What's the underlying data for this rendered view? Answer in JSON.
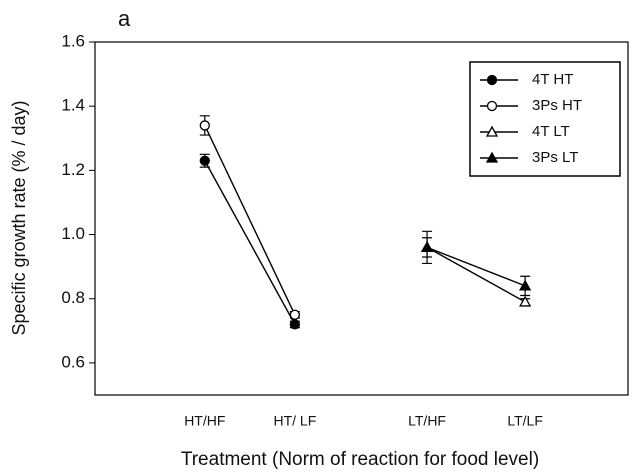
{
  "chart_data": {
    "type": "line",
    "panel_label": "a",
    "xlabel": "Treatment (Norm of reaction for food level)",
    "ylabel": "Specific growth rate (%  / day)",
    "categories": [
      "HT/HF",
      "HT/ LF",
      "LT/HF",
      "LT/LF"
    ],
    "series": [
      {
        "name": "4T HT",
        "color": "#000000",
        "marker": "circle",
        "filled": true,
        "values": [
          1.23,
          0.72,
          null,
          null
        ],
        "errors": [
          0.02,
          0.01,
          null,
          null
        ]
      },
      {
        "name": "3Ps HT",
        "color": "#000000",
        "marker": "circle",
        "filled": false,
        "values": [
          1.34,
          0.75,
          null,
          null
        ],
        "errors": [
          0.03,
          0.01,
          null,
          null
        ]
      },
      {
        "name": "4T LT",
        "color": "#000000",
        "marker": "triangle",
        "filled": false,
        "values": [
          null,
          null,
          0.96,
          0.79
        ],
        "errors": [
          null,
          null,
          0.05,
          0.01
        ]
      },
      {
        "name": "3Ps LT",
        "color": "#000000",
        "marker": "triangle",
        "filled": true,
        "values": [
          null,
          null,
          0.96,
          0.84
        ],
        "errors": [
          null,
          null,
          0.03,
          0.03
        ]
      }
    ],
    "ylim": [
      0.5,
      1.6
    ],
    "yticks": [
      0.6,
      0.8,
      {
        "value": 1,
        "label": "1.0"
      },
      1.2,
      1.4,
      1.6
    ],
    "legend": "upper right"
  }
}
